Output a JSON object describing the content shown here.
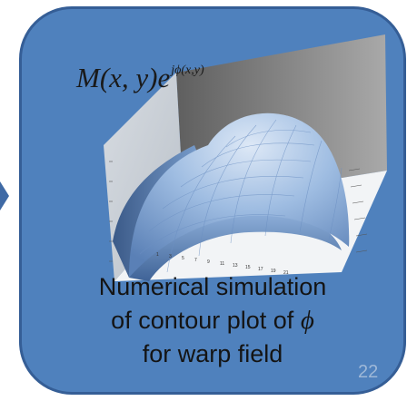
{
  "colors": {
    "card_fill": "#4f81bd",
    "card_border": "#355e96",
    "surface_light": "#c9daf0",
    "surface_mid": "#7ea3d2",
    "surface_dark": "#3d5f8f",
    "back_wall": "#8c8c8c",
    "side_wall": "#cfd4da",
    "floor": "#f2f4f6",
    "slide_number": "#9eb8d8"
  },
  "icons": {
    "connector": "arrow-right-icon"
  },
  "formula": {
    "base": "M(x, y)e",
    "exponent": "jϕ(x,y)"
  },
  "caption": {
    "line1": "Numerical simulation",
    "line2_prefix": "of contour plot of ",
    "line2_symbol": "ϕ",
    "line3": "for warp field"
  },
  "slide_number": "22",
  "x_ticks": [
    "1",
    "3",
    "5",
    "7",
    "9",
    "11",
    "13",
    "15",
    "17",
    "19",
    "21"
  ]
}
